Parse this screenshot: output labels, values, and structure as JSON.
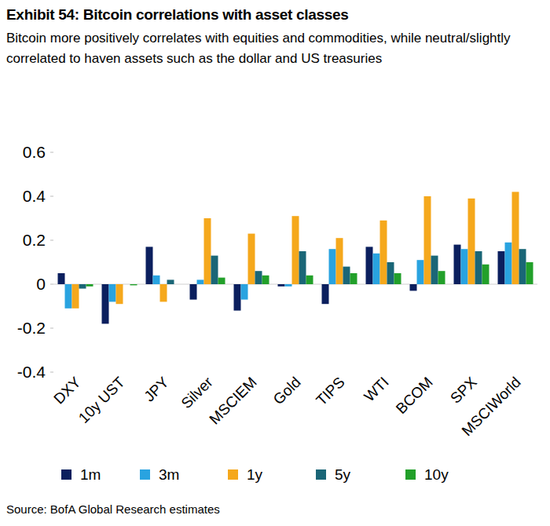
{
  "chart_data": {
    "type": "bar",
    "title": "Exhibit 54: Bitcoin correlations with asset classes",
    "subtitle": "Bitcoin more positively correlates with equities and commodities, while neutral/slightly correlated to haven assets such as the dollar and US treasuries",
    "source": "Source: BofA Global Research estimates",
    "categories": [
      "DXY",
      "10y UST",
      "JPY",
      "Silver",
      "MSCIEM",
      "Gold",
      "TIPS",
      "WTI",
      "BCOM",
      "SPX",
      "MSCIWorld"
    ],
    "series": [
      {
        "name": "1m",
        "color": "#0b1f5e",
        "values": [
          0.05,
          -0.18,
          0.17,
          -0.07,
          -0.12,
          -0.01,
          -0.09,
          0.17,
          -0.03,
          0.18,
          0.15
        ]
      },
      {
        "name": "3m",
        "color": "#29a3e0",
        "values": [
          -0.11,
          -0.08,
          0.04,
          0.02,
          -0.07,
          -0.01,
          0.16,
          0.14,
          0.11,
          0.16,
          0.19
        ]
      },
      {
        "name": "1y",
        "color": "#f5a81c",
        "values": [
          -0.11,
          -0.09,
          -0.08,
          0.3,
          0.23,
          0.31,
          0.21,
          0.29,
          0.4,
          0.39,
          0.42
        ]
      },
      {
        "name": "5y",
        "color": "#1a6677",
        "values": [
          -0.02,
          0.0,
          0.02,
          0.13,
          0.06,
          0.15,
          0.08,
          0.1,
          0.13,
          0.15,
          0.16
        ]
      },
      {
        "name": "10y",
        "color": "#22a02a",
        "values": [
          -0.01,
          -0.005,
          0.0,
          0.03,
          0.04,
          0.04,
          0.05,
          0.05,
          0.06,
          0.09,
          0.1
        ]
      }
    ],
    "ylim": [
      -0.4,
      0.6
    ],
    "yticks": [
      -0.4,
      -0.2,
      0,
      0.2,
      0.4,
      0.6
    ],
    "grid": false,
    "legend": "bottom"
  }
}
